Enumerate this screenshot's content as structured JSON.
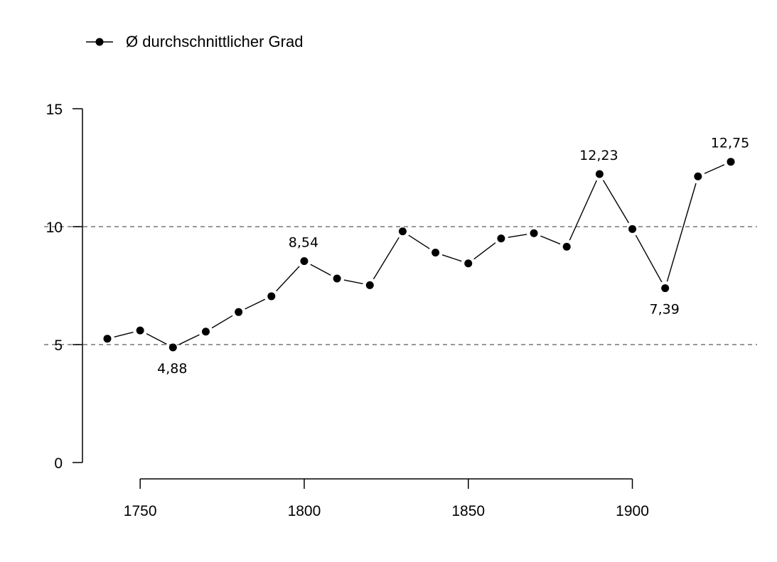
{
  "chart_data": {
    "type": "line",
    "title": "",
    "xlabel": "",
    "ylabel": "",
    "legend": {
      "position": "top-left",
      "label": "Ø durchschnittlicher Grad"
    },
    "series": [
      {
        "name": "Ø durchschnittlicher Grad",
        "x": [
          1740,
          1750,
          1760,
          1770,
          1780,
          1790,
          1800,
          1810,
          1820,
          1830,
          1840,
          1850,
          1860,
          1870,
          1880,
          1890,
          1900,
          1910,
          1920,
          1930
        ],
        "values": [
          5.25,
          5.6,
          4.88,
          5.55,
          6.38,
          7.05,
          8.54,
          7.8,
          7.52,
          9.8,
          8.9,
          8.44,
          9.5,
          9.72,
          9.15,
          12.23,
          9.9,
          7.39,
          12.13,
          12.75
        ],
        "color": "#000000"
      }
    ],
    "data_labels": [
      {
        "x": 1760,
        "y": 4.88,
        "text": "4,88",
        "placement": "below"
      },
      {
        "x": 1800,
        "y": 8.54,
        "text": "8,54",
        "placement": "above"
      },
      {
        "x": 1890,
        "y": 12.23,
        "text": "12,23",
        "placement": "above"
      },
      {
        "x": 1910,
        "y": 7.39,
        "text": "7,39",
        "placement": "below"
      },
      {
        "x": 1930,
        "y": 12.75,
        "text": "12,75",
        "placement": "above"
      }
    ],
    "x_ticks": [
      {
        "value": 1750,
        "label": "1750"
      },
      {
        "value": 1800,
        "label": "1800"
      },
      {
        "value": 1850,
        "label": "1850"
      },
      {
        "value": 1900,
        "label": "1900"
      }
    ],
    "y_ticks": [
      {
        "value": 0,
        "label": "0"
      },
      {
        "value": 5,
        "label": "5"
      },
      {
        "value": 10,
        "label": "10"
      },
      {
        "value": 15,
        "label": "15"
      }
    ],
    "reference_lines": [
      5,
      10
    ],
    "xlim": [
      1732,
      1942
    ],
    "ylim": [
      0,
      15
    ],
    "grid": false
  }
}
